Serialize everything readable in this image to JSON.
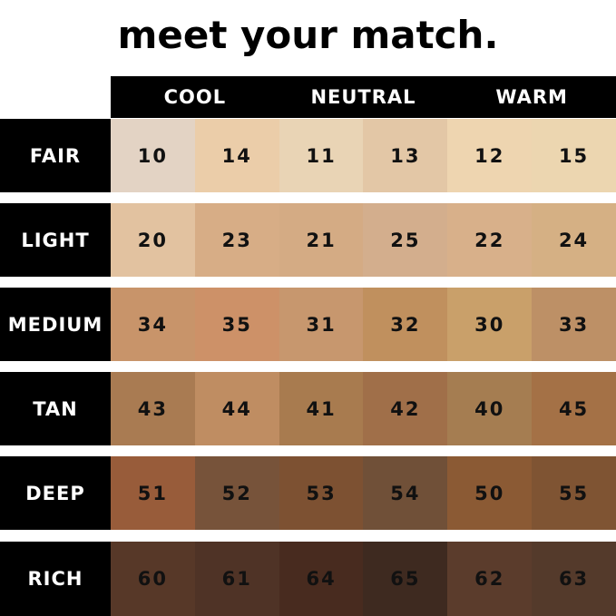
{
  "title": "meet your match.",
  "columns": [
    "COOL",
    "NEUTRAL",
    "WARM"
  ],
  "rows": [
    {
      "label": "FAIR",
      "shades": [
        "10",
        "14",
        "11",
        "13",
        "12",
        "15"
      ],
      "colors": [
        "#e3d3c4",
        "#ebcda9",
        "#e9d4b5",
        "#e3c7a6",
        "#eed5b0",
        "#ecd6b0"
      ]
    },
    {
      "label": "LIGHT",
      "shades": [
        "20",
        "23",
        "21",
        "25",
        "22",
        "24"
      ],
      "colors": [
        "#e2c2a0",
        "#d7ad86",
        "#d4ab84",
        "#d3ae8d",
        "#d8b08a",
        "#d5b084"
      ]
    },
    {
      "label": "MEDIUM",
      "shades": [
        "34",
        "35",
        "31",
        "32",
        "30",
        "33"
      ],
      "colors": [
        "#c8946a",
        "#cd9168",
        "#c7976e",
        "#c0905e",
        "#c9a06a",
        "#bd9066"
      ]
    },
    {
      "label": "TAN",
      "shades": [
        "43",
        "44",
        "41",
        "42",
        "40",
        "45"
      ],
      "colors": [
        "#a97b52",
        "#bf8d62",
        "#a87b4f",
        "#a06f49",
        "#a57d51",
        "#a47146"
      ]
    },
    {
      "label": "DEEP",
      "shades": [
        "51",
        "52",
        "53",
        "54",
        "50",
        "55"
      ],
      "colors": [
        "#985c3a",
        "#77533a",
        "#7d5132",
        "#705038",
        "#8b5a34",
        "#7f5433"
      ]
    },
    {
      "label": "RICH",
      "shades": [
        "60",
        "61",
        "64",
        "65",
        "62",
        "63"
      ],
      "colors": [
        "#573828",
        "#4f3326",
        "#482b1f",
        "#3e2a20",
        "#5b3c2c",
        "#543a2b"
      ]
    }
  ]
}
